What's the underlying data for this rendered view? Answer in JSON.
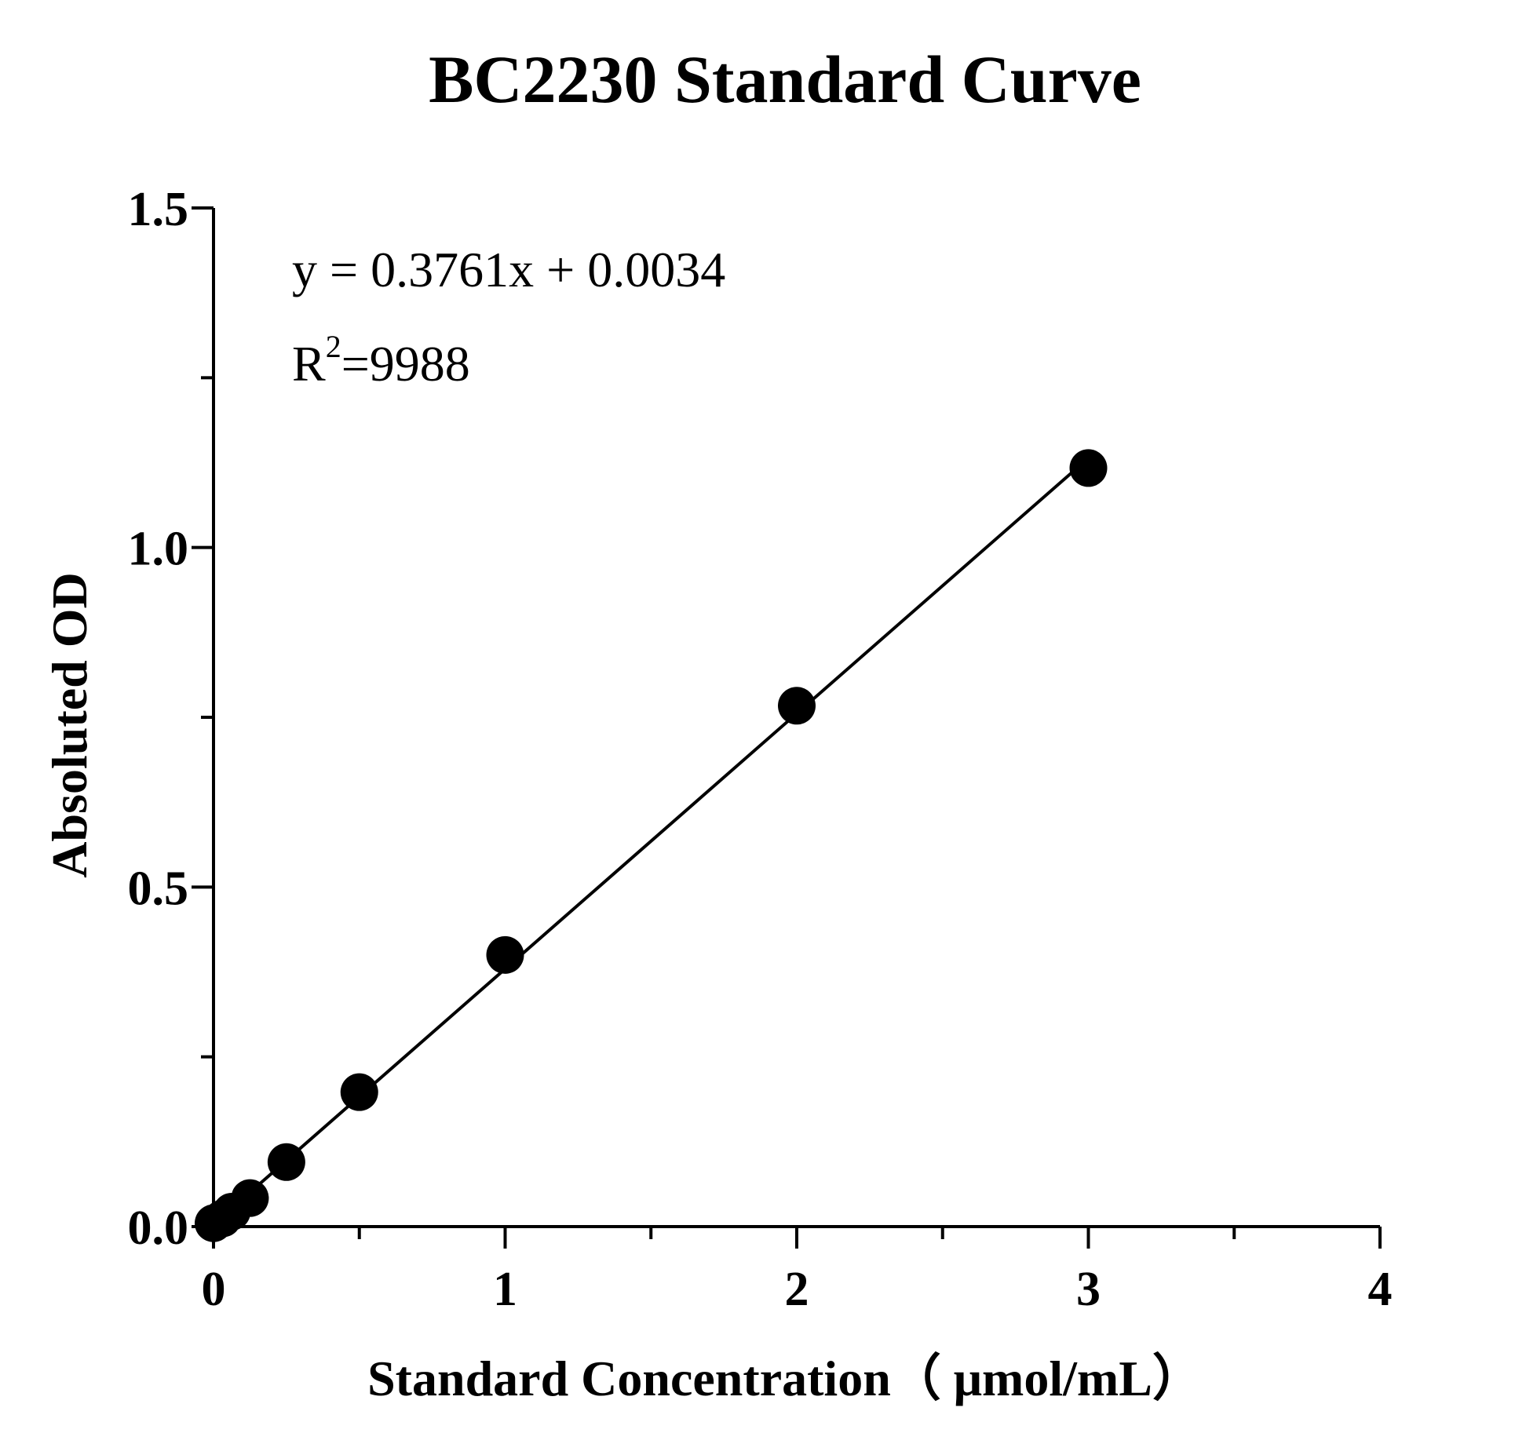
{
  "chart_data": {
    "type": "scatter",
    "title": "BC2230 Standard Curve",
    "xlabel": "Standard Concentration（ μmol/mL）",
    "ylabel": "Absoluted OD",
    "xlim": [
      0,
      4
    ],
    "ylim": [
      0,
      1.5
    ],
    "x_ticks": [
      "0",
      "1",
      "2",
      "3",
      "4"
    ],
    "y_ticks": [
      "0.0",
      "0.5",
      "1.0",
      "1.5"
    ],
    "grid": false,
    "series": [
      {
        "x": [
          0,
          0.03125,
          0.0625,
          0.125,
          0.25,
          0.5,
          1,
          2,
          3
        ],
        "y": [
          0.005,
          0.012,
          0.022,
          0.042,
          0.095,
          0.198,
          0.4,
          0.767,
          1.117
        ]
      }
    ],
    "fit_line": {
      "slope": 0.3761,
      "intercept": 0.0034
    },
    "annotations": {
      "equation": "y = 0.3761x + 0.0034",
      "r2_prefix": "R",
      "r2_sup": "2",
      "r2_value": "=9988"
    }
  }
}
